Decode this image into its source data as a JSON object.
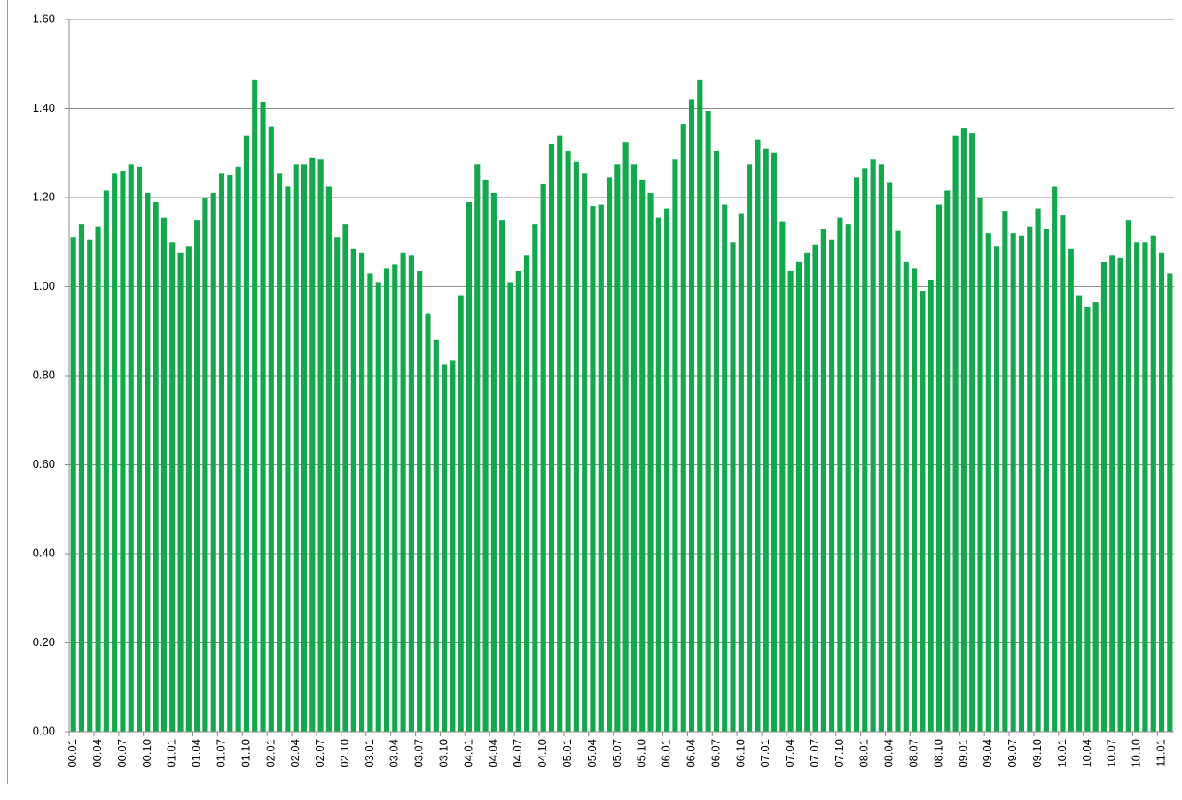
{
  "chart_data": {
    "type": "bar",
    "color": "#12a84b",
    "categories": [
      "00.01",
      null,
      null,
      "00.04",
      null,
      null,
      "00.07",
      null,
      null,
      "00.10",
      null,
      null,
      "01.01",
      null,
      null,
      "01.04",
      null,
      null,
      "01.07",
      null,
      null,
      "01.10",
      null,
      null,
      "02.01",
      null,
      null,
      "02.04",
      null,
      null,
      "02.07",
      null,
      null,
      "02.10",
      null,
      null,
      "03.01",
      null,
      null,
      "03.04",
      null,
      null,
      "03.07",
      null,
      null,
      "03.10",
      null,
      null,
      "04.01",
      null,
      null,
      "04.04",
      null,
      null,
      "04.07",
      null,
      null,
      "04.10",
      null,
      null,
      "05.01",
      null,
      null,
      "05.04",
      null,
      null,
      "05.07",
      null,
      null,
      "05.10",
      null,
      null,
      "06.01",
      null,
      null,
      "06.04",
      null,
      null,
      "06.07",
      null,
      null,
      "06.10",
      null,
      null,
      "07.01",
      null,
      null,
      "07.04",
      null,
      null,
      "07.07",
      null,
      null,
      "07.10",
      null,
      null,
      "08.01",
      null,
      null,
      "08.04",
      null,
      null,
      "08.07",
      null,
      null,
      "08.10",
      null,
      null,
      "09.01",
      null,
      null,
      "09.04",
      null,
      null,
      "09.07",
      null,
      null,
      "09.10",
      null,
      null,
      "10.01",
      null,
      null,
      "10.04",
      null,
      null,
      "10.07",
      null,
      null,
      "10.10",
      null,
      null,
      "11.01",
      null
    ],
    "values": [
      1.11,
      1.14,
      1.105,
      1.135,
      1.215,
      1.255,
      1.26,
      1.275,
      1.27,
      1.21,
      1.19,
      1.155,
      1.1,
      1.075,
      1.09,
      1.15,
      1.2,
      1.21,
      1.255,
      1.25,
      1.27,
      1.34,
      1.465,
      1.415,
      1.36,
      1.255,
      1.225,
      1.275,
      1.275,
      1.29,
      1.285,
      1.225,
      1.11,
      1.14,
      1.085,
      1.075,
      1.03,
      1.01,
      1.04,
      1.05,
      1.075,
      1.07,
      1.035,
      0.94,
      0.88,
      0.825,
      0.835,
      0.98,
      1.19,
      1.275,
      1.24,
      1.21,
      1.15,
      1.01,
      1.035,
      1.07,
      1.14,
      1.23,
      1.32,
      1.34,
      1.305,
      1.28,
      1.255,
      1.18,
      1.185,
      1.245,
      1.275,
      1.325,
      1.275,
      1.24,
      1.21,
      1.155,
      1.175,
      1.285,
      1.365,
      1.42,
      1.465,
      1.395,
      1.305,
      1.185,
      1.1,
      1.165,
      1.275,
      1.33,
      1.31,
      1.3,
      1.145,
      1.035,
      1.055,
      1.075,
      1.095,
      1.13,
      1.105,
      1.155,
      1.14,
      1.245,
      1.265,
      1.285,
      1.275,
      1.235,
      1.125,
      1.055,
      1.04,
      0.99,
      1.015,
      1.185,
      1.215,
      1.34,
      1.355,
      1.345,
      1.2,
      1.12,
      1.09,
      1.17,
      1.12,
      1.115,
      1.135,
      1.175,
      1.13,
      1.225,
      1.16,
      1.085,
      0.98,
      0.955,
      0.965,
      1.055,
      1.07,
      1.065,
      1.15,
      1.1,
      1.1,
      1.115,
      1.075,
      1.03
    ],
    "ylim": [
      0,
      1.6
    ],
    "yticks": [
      {
        "value": 0,
        "label": "0.00"
      },
      {
        "value": 0.2,
        "label": "0.20"
      },
      {
        "value": 0.4,
        "label": "0.40"
      },
      {
        "value": 0.6,
        "label": "0.60"
      },
      {
        "value": 0.8,
        "label": "0.80"
      },
      {
        "value": 1.0,
        "label": "1.00"
      },
      {
        "value": 1.2,
        "label": "1.20"
      },
      {
        "value": 1.4,
        "label": "1.40"
      },
      {
        "value": 1.6,
        "label": "1.60"
      }
    ],
    "grid": true
  }
}
